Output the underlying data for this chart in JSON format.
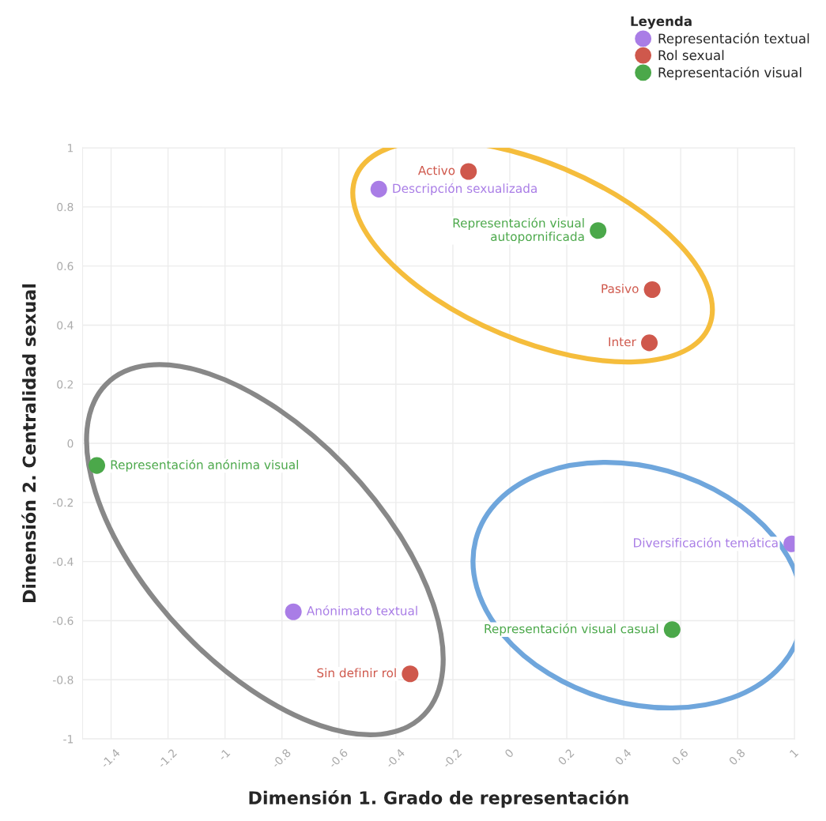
{
  "chart_data": {
    "type": "scatter",
    "xlabel": "Dimensión 1. Grado de representación",
    "ylabel": "Dimensión 2. Centralidad sexual",
    "legend_title": "Leyenda",
    "legend": "top right",
    "marker": "circle",
    "grid": true,
    "xlim": [
      -1.5,
      1
    ],
    "ylim": [
      -1,
      1
    ],
    "xticks": [
      -1.4,
      -1.2,
      -1,
      -0.8,
      -0.6,
      -0.4,
      -0.2,
      0,
      0.2,
      0.4,
      0.6,
      0.8,
      1
    ],
    "yticks": [
      -1,
      -0.8,
      -0.6,
      -0.4,
      -0.2,
      0,
      0.2,
      0.4,
      0.6,
      0.8,
      1
    ],
    "series": [
      {
        "name": "Representación textual",
        "color": "#a97de6",
        "x": [
          -0.46,
          0.99,
          -0.76
        ],
        "values": [
          0.86,
          -0.34,
          -0.57
        ]
      },
      {
        "name": "Rol sexual",
        "color": "#cf584c",
        "x": [
          -0.145,
          0.5,
          0.49,
          -0.35
        ],
        "values": [
          0.92,
          0.52,
          0.34,
          -0.78
        ]
      },
      {
        "name": "Representación visual",
        "color": "#4ba84a",
        "x": [
          0.31,
          -1.45,
          0.57
        ],
        "values": [
          0.72,
          -0.075,
          -0.63
        ]
      }
    ],
    "annotations": [
      {
        "text": "Activo",
        "x": -0.145,
        "y": 0.92
      },
      {
        "text": "Descripción sexualizada",
        "x": -0.46,
        "y": 0.86
      },
      {
        "text": "Representación visual\nautopornificada",
        "x": 0.31,
        "y": 0.72
      },
      {
        "text": "Pasivo",
        "x": 0.5,
        "y": 0.52
      },
      {
        "text": "Inter",
        "x": 0.49,
        "y": 0.34
      },
      {
        "text": "Representación anónima visual",
        "x": -1.45,
        "y": -0.075
      },
      {
        "text": "Diversificación temática",
        "x": 0.99,
        "y": -0.34
      },
      {
        "text": "Anónimato textual",
        "x": -0.76,
        "y": -0.57
      },
      {
        "text": "Representación visual casual",
        "x": 0.57,
        "y": -0.63
      },
      {
        "text": "Sin definir rol",
        "x": -0.35,
        "y": -0.78
      }
    ]
  }
}
